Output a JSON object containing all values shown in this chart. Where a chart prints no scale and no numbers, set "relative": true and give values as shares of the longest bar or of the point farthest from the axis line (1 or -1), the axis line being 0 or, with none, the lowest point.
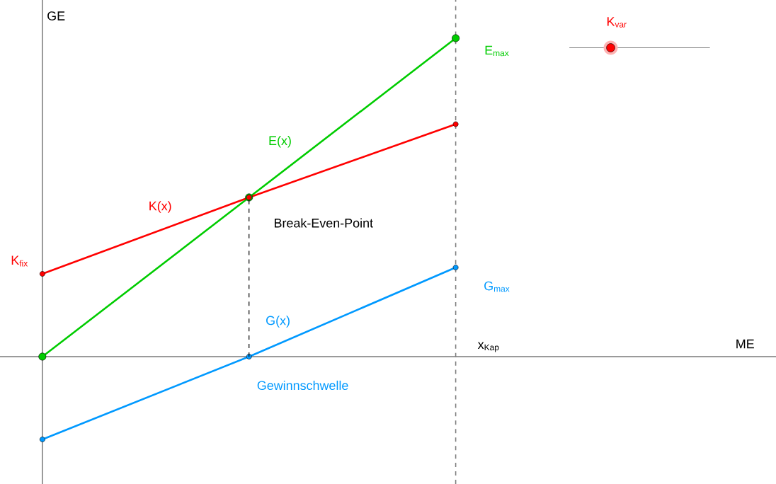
{
  "chart_data": {
    "type": "line",
    "relative": true,
    "ylabel": "GE",
    "categories": [
      null,
      null,
      null
    ],
    "series": [
      {
        "name": "E(x)",
        "color": "#00cc00",
        "values": [
          0,
          0.5,
          1
        ]
      },
      {
        "name": "K(x)",
        "color": "#ff0000",
        "values": [
          0.26,
          0.5,
          0.73
        ]
      },
      {
        "name": "G(x)",
        "color": "#0099ff",
        "values": [
          -0.26,
          0,
          0.28
        ]
      }
    ],
    "marker": "circle",
    "line_style": "solid",
    "grid": false,
    "annotations": [
      "K$_{fix}$",
      "E$_{max}$",
      "G$_{max}$",
      "x$_{Kap}$",
      "Break-Even-Point",
      "Gewinnschwelle",
      "K$_{var}$",
      "ME"
    ]
  }
}
